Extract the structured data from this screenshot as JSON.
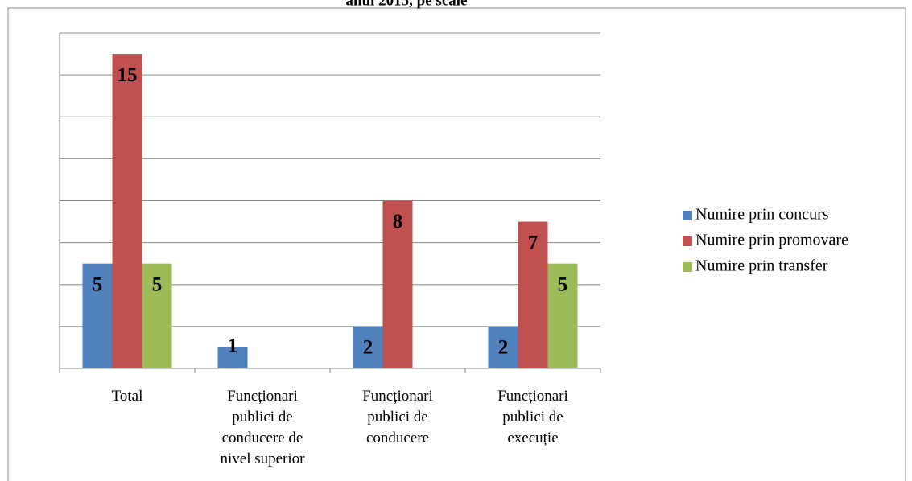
{
  "chart_data": {
    "type": "bar",
    "title": "anul 2015, pe scale",
    "categories": [
      "Total",
      "Funcționari publici de conducere de nivel superior",
      "Funcționari publici de conducere",
      "Funcționari publici de execuție"
    ],
    "series": [
      {
        "name": "Numire prin concurs",
        "color": "#4f81bd",
        "values": [
          5,
          1,
          2,
          2
        ]
      },
      {
        "name": "Numire prin promovare",
        "color": "#c0504d",
        "values": [
          15,
          null,
          8,
          7
        ]
      },
      {
        "name": "Numire prin transfer",
        "color": "#9bbb59",
        "values": [
          5,
          null,
          null,
          5
        ]
      }
    ],
    "ylim": [
      0,
      16
    ],
    "yticks": [
      0,
      2,
      4,
      6,
      8,
      10,
      12,
      14,
      16
    ],
    "grid": true,
    "legend": "right"
  }
}
